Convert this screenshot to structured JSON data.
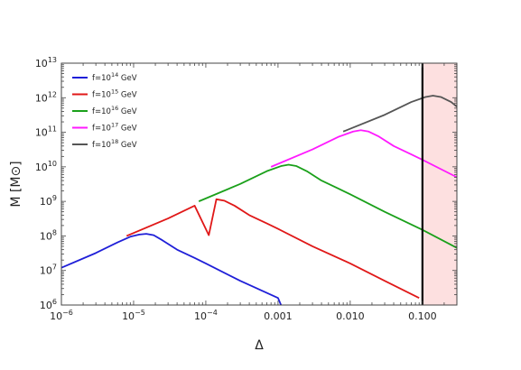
{
  "chart_data": {
    "type": "line",
    "xlabel": "Δ",
    "ylabel": "M [M⊙]",
    "xscale": "log",
    "yscale": "log",
    "xlim": [
      1e-06,
      0.3
    ],
    "ylim": [
      1000000.0,
      10000000000000.0
    ],
    "x_ticks": [
      {
        "v": 1e-06,
        "base": "10",
        "exp": "−6"
      },
      {
        "v": 1e-05,
        "base": "10",
        "exp": "−5"
      },
      {
        "v": 0.0001,
        "base": "10",
        "exp": "−4"
      },
      {
        "v": 0.001,
        "base": "0.001",
        "exp": ""
      },
      {
        "v": 0.01,
        "base": "0.010",
        "exp": ""
      },
      {
        "v": 0.1,
        "base": "0.100",
        "exp": ""
      }
    ],
    "y_ticks": [
      {
        "v": 1000000.0,
        "base": "10",
        "exp": "6"
      },
      {
        "v": 10000000.0,
        "base": "10",
        "exp": "7"
      },
      {
        "v": 100000000.0,
        "base": "10",
        "exp": "8"
      },
      {
        "v": 1000000000.0,
        "base": "10",
        "exp": "9"
      },
      {
        "v": 10000000000.0,
        "base": "10",
        "exp": "10"
      },
      {
        "v": 100000000000.0,
        "base": "10",
        "exp": "11"
      },
      {
        "v": 1000000000000.0,
        "base": "10",
        "exp": "12"
      },
      {
        "v": 10000000000000.0,
        "base": "10",
        "exp": "13"
      }
    ],
    "vertical_line": {
      "x": 0.1,
      "color": "#000000"
    },
    "shaded_region": {
      "x": [
        0.1,
        0.3
      ],
      "color": "#fde0e0"
    },
    "legend_position": "top-left",
    "series": [
      {
        "name": "f=10",
        "name_exp": "14",
        "name_suffix": " GeV",
        "color": "#1f1fd8",
        "points": [
          [
            1e-06,
            12000000.0
          ],
          [
            3e-06,
            32000000.0
          ],
          [
            6e-06,
            65000000.0
          ],
          [
            9e-06,
            95000000.0
          ],
          [
            1.2e-05,
            110000000.0
          ],
          [
            1.5e-05,
            115000000.0
          ],
          [
            1.9e-05,
            105000000.0
          ],
          [
            2.5e-05,
            75000000.0
          ],
          [
            4e-05,
            40000000.0
          ],
          [
            7e-05,
            23000000.0
          ],
          [
            0.0001,
            16000000.0
          ],
          [
            0.0003,
            5000000.0
          ],
          [
            0.001,
            1600000.0
          ],
          [
            0.0011,
            1000000.0
          ]
        ]
      },
      {
        "name": "f=10",
        "name_exp": "15",
        "name_suffix": " GeV",
        "color": "#e01818",
        "points": [
          [
            8e-06,
            100000000.0
          ],
          [
            3e-05,
            320000000.0
          ],
          [
            7e-05,
            750000000.0
          ],
          [
            0.00011,
            105000000.0
          ],
          [
            0.00014,
            1150000000.0
          ],
          [
            0.00018,
            1050000000.0
          ],
          [
            0.00025,
            750000000.0
          ],
          [
            0.0004,
            400000000.0
          ],
          [
            0.0007,
            230000000.0
          ],
          [
            0.001,
            160000000.0
          ],
          [
            0.003,
            50000000.0
          ],
          [
            0.01,
            16000000.0
          ],
          [
            0.03,
            5000000.0
          ],
          [
            0.09,
            1600000.0
          ]
        ]
      },
      {
        "name": "f=10",
        "name_exp": "16",
        "name_suffix": " GeV",
        "color": "#1aa01a",
        "points": [
          [
            8e-05,
            1000000000.0
          ],
          [
            0.0003,
            3200000000.0
          ],
          [
            0.0007,
            7500000000.0
          ],
          [
            0.0011,
            10500000000.0
          ],
          [
            0.0014,
            11500000000.0
          ],
          [
            0.0018,
            10500000000.0
          ],
          [
            0.0025,
            7500000000.0
          ],
          [
            0.004,
            4000000000.0
          ],
          [
            0.007,
            2300000000.0
          ],
          [
            0.01,
            1600000000.0
          ],
          [
            0.03,
            500000000.0
          ],
          [
            0.1,
            150000000.0
          ],
          [
            0.3,
            45000000.0
          ]
        ]
      },
      {
        "name": "f=10",
        "name_exp": "17",
        "name_suffix": " GeV",
        "color": "#ff1aff",
        "points": [
          [
            0.0008,
            10000000000.0
          ],
          [
            0.003,
            32000000000.0
          ],
          [
            0.007,
            75000000000.0
          ],
          [
            0.011,
            105000000000.0
          ],
          [
            0.014,
            115000000000.0
          ],
          [
            0.018,
            105000000000.0
          ],
          [
            0.025,
            75000000000.0
          ],
          [
            0.04,
            40000000000.0
          ],
          [
            0.07,
            23000000000.0
          ],
          [
            0.1,
            16000000000.0
          ],
          [
            0.3,
            5000000000.0
          ]
        ]
      },
      {
        "name": "f=10",
        "name_exp": "18",
        "name_suffix": " GeV",
        "color": "#555555",
        "points": [
          [
            0.008,
            105000000000.0
          ],
          [
            0.03,
            320000000000.0
          ],
          [
            0.07,
            750000000000.0
          ],
          [
            0.11,
            1050000000000.0
          ],
          [
            0.14,
            1150000000000.0
          ],
          [
            0.18,
            1050000000000.0
          ],
          [
            0.25,
            750000000000.0
          ],
          [
            0.3,
            550000000000.0
          ]
        ]
      }
    ]
  }
}
